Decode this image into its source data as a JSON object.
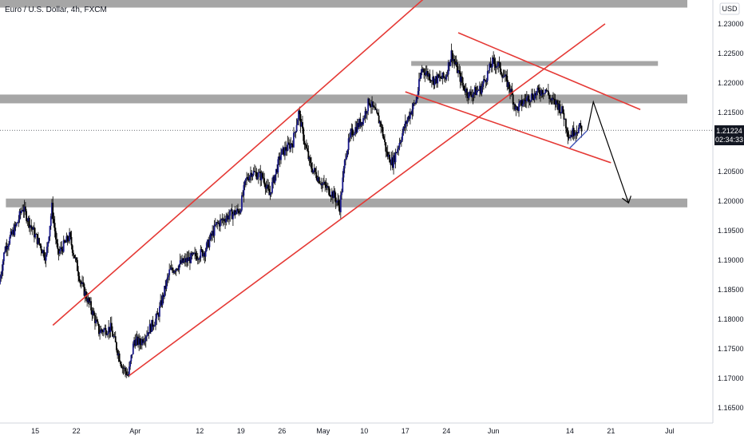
{
  "title": "Euro / U.S. Dollar, 4h, FXCM",
  "currency": "USD",
  "price_label": {
    "value": "1.21224",
    "countdown": "02:34:33"
  },
  "colors": {
    "candle": "#1a1a8c",
    "wick": "#000000",
    "channel": "#e53935",
    "zone": "#a6a6a6",
    "projection_blue": "#3f51b5",
    "projection_black": "#000000"
  },
  "chart_data": {
    "type": "candlestick",
    "title": "Euro / U.S. Dollar, 4h, FXCM",
    "ylabel": "USD",
    "ylim": [
      1.163,
      1.2335
    ],
    "y_ticks": [
      "1.16500",
      "1.17000",
      "1.17500",
      "1.18000",
      "1.18500",
      "1.19000",
      "1.19500",
      "1.20000",
      "1.20500",
      "1.21000",
      "1.21500",
      "1.22000",
      "1.22500",
      "1.23000"
    ],
    "x_ticks": [
      {
        "label": "15",
        "date": "2021-03-15"
      },
      {
        "label": "22",
        "date": "2021-03-22"
      },
      {
        "label": "Apr",
        "date": "2021-04-01"
      },
      {
        "label": "12",
        "date": "2021-04-12"
      },
      {
        "label": "19",
        "date": "2021-04-19"
      },
      {
        "label": "26",
        "date": "2021-04-26"
      },
      {
        "label": "May",
        "date": "2021-05-03"
      },
      {
        "label": "10",
        "date": "2021-05-10"
      },
      {
        "label": "17",
        "date": "2021-05-17"
      },
      {
        "label": "24",
        "date": "2021-05-24"
      },
      {
        "label": "Jun",
        "date": "2021-06-01"
      },
      {
        "label": "14",
        "date": "2021-06-14"
      },
      {
        "label": "21",
        "date": "2021-06-21"
      },
      {
        "label": "Jul",
        "date": "2021-07-01"
      }
    ],
    "price_path": [
      [
        "2021-03-09",
        1.186
      ],
      [
        "2021-03-10",
        1.192
      ],
      [
        "2021-03-12",
        1.196
      ],
      [
        "2021-03-13",
        1.199
      ],
      [
        "2021-03-15",
        1.1945
      ],
      [
        "2021-03-17",
        1.1905
      ],
      [
        "2021-03-18",
        1.199
      ],
      [
        "2021-03-19",
        1.191
      ],
      [
        "2021-03-21",
        1.194
      ],
      [
        "2021-03-23",
        1.186
      ],
      [
        "2021-03-25",
        1.181
      ],
      [
        "2021-03-26",
        1.178
      ],
      [
        "2021-03-28",
        1.1785
      ],
      [
        "2021-03-30",
        1.172
      ],
      [
        "2021-03-31",
        1.1705
      ],
      [
        "2021-04-01",
        1.1765
      ],
      [
        "2021-04-02",
        1.176
      ],
      [
        "2021-04-05",
        1.1805
      ],
      [
        "2021-04-07",
        1.188
      ],
      [
        "2021-04-09",
        1.1895
      ],
      [
        "2021-04-11",
        1.1905
      ],
      [
        "2021-04-13",
        1.1915
      ],
      [
        "2021-04-15",
        1.196
      ],
      [
        "2021-04-17",
        1.1975
      ],
      [
        "2021-04-19",
        1.1985
      ],
      [
        "2021-04-20",
        1.2035
      ],
      [
        "2021-04-21",
        1.205
      ],
      [
        "2021-04-23",
        1.204
      ],
      [
        "2021-04-24",
        1.201
      ],
      [
        "2021-04-26",
        1.208
      ],
      [
        "2021-04-28",
        1.21
      ],
      [
        "2021-04-29",
        1.215
      ],
      [
        "2021-04-30",
        1.21
      ],
      [
        "2021-05-01",
        1.206
      ],
      [
        "2021-05-03",
        1.203
      ],
      [
        "2021-05-05",
        1.201
      ],
      [
        "2021-05-06",
        1.199
      ],
      [
        "2021-05-07",
        1.208
      ],
      [
        "2021-05-08",
        1.2115
      ],
      [
        "2021-05-10",
        1.214
      ],
      [
        "2021-05-11",
        1.217
      ],
      [
        "2021-05-13",
        1.213
      ],
      [
        "2021-05-14",
        1.208
      ],
      [
        "2021-05-15",
        1.2065
      ],
      [
        "2021-05-17",
        1.2125
      ],
      [
        "2021-05-18",
        1.215
      ],
      [
        "2021-05-19",
        1.217
      ],
      [
        "2021-05-20",
        1.2225
      ],
      [
        "2021-05-22",
        1.2205
      ],
      [
        "2021-05-24",
        1.221
      ],
      [
        "2021-05-25",
        1.225
      ],
      [
        "2021-05-27",
        1.2195
      ],
      [
        "2021-05-28",
        1.218
      ],
      [
        "2021-05-30",
        1.219
      ],
      [
        "2021-06-01",
        1.2235
      ],
      [
        "2021-06-02",
        1.223
      ],
      [
        "2021-06-04",
        1.219
      ],
      [
        "2021-06-05",
        1.2155
      ],
      [
        "2021-06-07",
        1.2175
      ],
      [
        "2021-06-08",
        1.218
      ],
      [
        "2021-06-10",
        1.219
      ],
      [
        "2021-06-11",
        1.217
      ],
      [
        "2021-06-12",
        1.2165
      ],
      [
        "2021-06-13",
        1.215
      ],
      [
        "2021-06-14",
        1.211
      ],
      [
        "2021-06-15",
        1.212
      ],
      [
        "2021-06-16",
        1.2124
      ]
    ],
    "annotations": {
      "horizontal_zones": [
        {
          "name": "top-zone",
          "price": 1.2335
        },
        {
          "name": "upper-resistance-zone",
          "price": 1.2233
        },
        {
          "name": "mid-zone",
          "price": 1.2173
        },
        {
          "name": "support-zone",
          "price": 1.1997
        }
      ],
      "channel_lines": [
        {
          "name": "channel-top",
          "from": [
            "2021-03-18",
            1.179
          ],
          "to": [
            "2021-05-29",
            1.242
          ]
        },
        {
          "name": "channel-bottom",
          "from": [
            "2021-03-31",
            1.1705
          ],
          "to": [
            "2021-06-20",
            1.23
          ]
        },
        {
          "name": "wedge-top",
          "from": [
            "2021-05-26",
            1.2285
          ],
          "to": [
            "2021-06-26",
            1.2155
          ]
        },
        {
          "name": "wedge-bottom",
          "from": [
            "2021-05-17",
            1.2185
          ],
          "to": [
            "2021-06-21",
            1.2065
          ]
        }
      ],
      "projection": {
        "blue_path": [
          [
            "2021-06-14",
            1.209
          ],
          [
            "2021-06-17",
            1.212
          ]
        ],
        "black_path": [
          [
            "2021-06-17",
            1.212
          ],
          [
            "2021-06-18",
            1.2168
          ],
          [
            "2021-06-24",
            1.1997
          ]
        ]
      }
    }
  }
}
